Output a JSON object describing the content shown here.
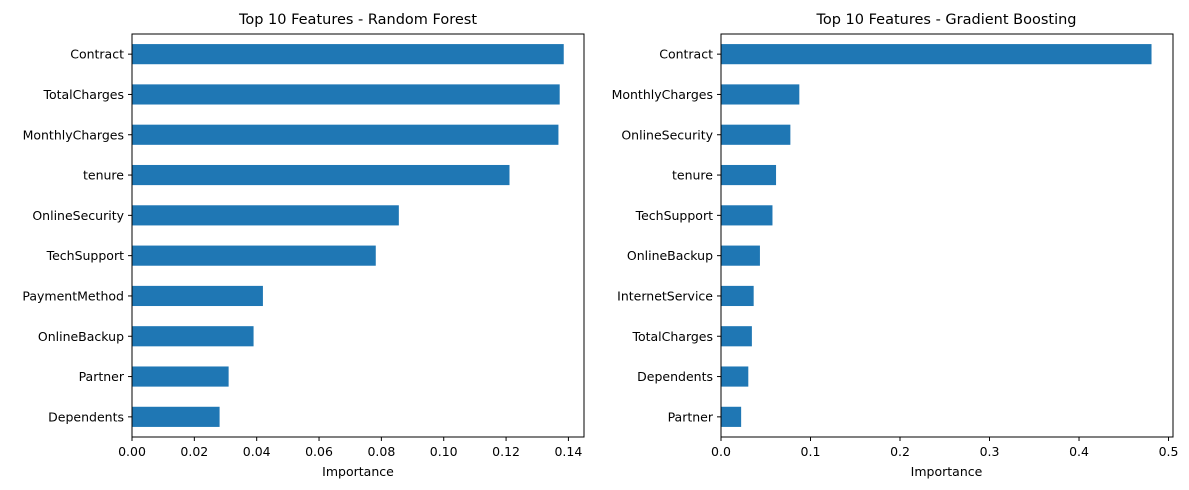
{
  "figure": {
    "bar_color": "#1f77b4",
    "background": "#ffffff"
  },
  "chart_data": [
    {
      "type": "bar",
      "orientation": "horizontal",
      "title": "Top 10 Features - Random Forest",
      "xlabel": "Importance",
      "ylabel": "",
      "xlim": [
        0,
        0.145
      ],
      "xticks": [
        0.0,
        0.02,
        0.04,
        0.06,
        0.08,
        0.1,
        0.12,
        0.14
      ],
      "xtick_labels": [
        "0.00",
        "0.02",
        "0.04",
        "0.06",
        "0.08",
        "0.10",
        "0.12",
        "0.14"
      ],
      "categories": [
        "Contract",
        "TotalCharges",
        "MonthlyCharges",
        "tenure",
        "OnlineSecurity",
        "TechSupport",
        "PaymentMethod",
        "OnlineBackup",
        "Partner",
        "Dependents"
      ],
      "values": [
        0.1385,
        0.1372,
        0.1368,
        0.1211,
        0.0856,
        0.0782,
        0.042,
        0.039,
        0.031,
        0.0281
      ],
      "grid": false,
      "legend": "none"
    },
    {
      "type": "bar",
      "orientation": "horizontal",
      "title": "Top 10 Features - Gradient Boosting",
      "xlabel": "Importance",
      "ylabel": "",
      "xlim": [
        0,
        0.505
      ],
      "xticks": [
        0.0,
        0.1,
        0.2,
        0.3,
        0.4,
        0.5
      ],
      "xtick_labels": [
        "0.0",
        "0.1",
        "0.2",
        "0.3",
        "0.4",
        "0.5"
      ],
      "categories": [
        "Contract",
        "MonthlyCharges",
        "OnlineSecurity",
        "tenure",
        "TechSupport",
        "OnlineBackup",
        "InternetService",
        "TotalCharges",
        "Dependents",
        "Partner"
      ],
      "values": [
        0.481,
        0.0875,
        0.0775,
        0.0615,
        0.0575,
        0.0435,
        0.0365,
        0.0345,
        0.0305,
        0.0225
      ],
      "grid": false,
      "legend": "none"
    }
  ]
}
